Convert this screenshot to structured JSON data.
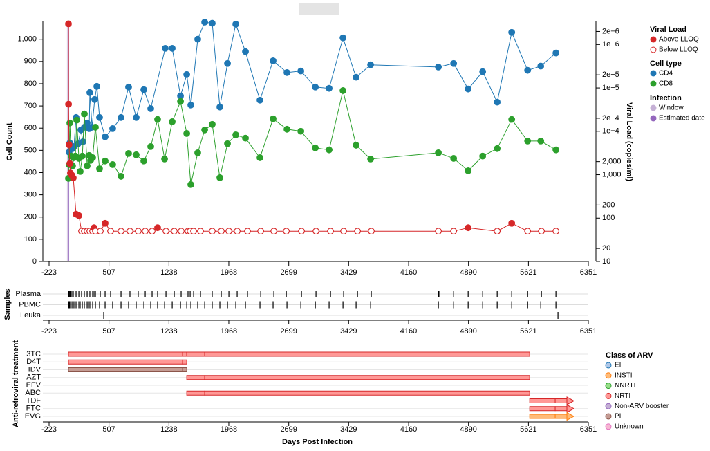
{
  "chart_data": [
    {
      "type": "line",
      "ylabel": "Cell Count",
      "y2label": "Viral Load (copies/ml)",
      "xlim": [
        -223,
        6351
      ],
      "xticks": [
        -223,
        507,
        1238,
        1968,
        2699,
        3429,
        4160,
        4890,
        5621,
        6351
      ],
      "ylim": [
        0,
        1080
      ],
      "yticks": [
        0,
        100,
        200,
        300,
        400,
        500,
        600,
        700,
        800,
        900,
        {
          "value": 1000,
          "label": "1,000"
        }
      ],
      "y2lim": [
        10,
        3400000
      ],
      "y2log": true,
      "y2ticks": [
        10,
        20,
        100,
        200,
        {
          "value": 1000,
          "label": "1,000"
        },
        {
          "value": 2000,
          "label": "2,000"
        },
        {
          "value": 10000,
          "label": "1e+4"
        },
        {
          "value": 20000,
          "label": "2e+4"
        },
        {
          "value": 100000,
          "label": "1e+5"
        },
        {
          "value": 200000,
          "label": "2e+5"
        },
        {
          "value": 1000000,
          "label": "1e+6"
        },
        {
          "value": 2000000,
          "label": "2e+6"
        }
      ],
      "cell_type_title": "Cell type",
      "series": [
        {
          "name": "CD4",
          "color": "#1f77b4",
          "x": [
            21,
            30,
            46,
            63,
            80,
            106,
            131,
            165,
            190,
            207,
            241,
            266,
            274,
            300,
            333,
            359,
            392,
            460,
            552,
            654,
            746,
            839,
            932,
            1016,
            1193,
            1278,
            1379,
            1455,
            1505,
            1589,
            1674,
            1766,
            1859,
            1952,
            2053,
            2171,
            2348,
            2508,
            2677,
            2846,
            3023,
            3191,
            3360,
            3520,
            3697,
            4523,
            4709,
            4886,
            5063,
            5240,
            5417,
            5611,
            5771,
            5956
          ],
          "values": [
            492,
            533,
            517,
            508,
            517,
            648,
            530,
            592,
            539,
            604,
            623,
            598,
            760,
            604,
            729,
            788,
            648,
            561,
            598,
            648,
            785,
            648,
            773,
            688,
            959,
            959,
            745,
            841,
            704,
            1000,
            1077,
            1072,
            695,
            891,
            1068,
            944,
            726,
            903,
            850,
            857,
            785,
            779,
            1006,
            829,
            885,
            875,
            891,
            776,
            854,
            717,
            1031,
            860,
            879,
            938
          ]
        },
        {
          "name": "CD8",
          "color": "#2ca02c",
          "x": [
            13,
            21,
            30,
            46,
            63,
            80,
            97,
            114,
            140,
            156,
            182,
            207,
            241,
            266,
            283,
            308,
            342,
            392,
            460,
            552,
            654,
            746,
            839,
            932,
            1016,
            1100,
            1185,
            1278,
            1379,
            1455,
            1505,
            1589,
            1674,
            1766,
            1859,
            1952,
            2053,
            2171,
            2348,
            2508,
            2677,
            2846,
            3023,
            3191,
            3360,
            3520,
            3697,
            4523,
            4709,
            4886,
            5063,
            5240,
            5417,
            5611,
            5771,
            5956
          ],
          "values": [
            374,
            436,
            623,
            474,
            430,
            467,
            474,
            636,
            464,
            405,
            474,
            664,
            430,
            477,
            455,
            467,
            604,
            417,
            452,
            436,
            383,
            486,
            480,
            452,
            517,
            639,
            461,
            629,
            720,
            576,
            346,
            489,
            592,
            617,
            377,
            530,
            570,
            555,
            467,
            642,
            595,
            586,
            511,
            502,
            769,
            523,
            461,
            489,
            464,
            408,
            474,
            508,
            639,
            542,
            542,
            502
          ]
        },
        {
          "name": "Viral Load",
          "color": "#d62728",
          "axis": "y2",
          "status_labels": [
            "Above LLOQ",
            "Below LLOQ"
          ],
          "x": [
            13,
            14,
            20,
            30,
            38,
            55,
            72,
            106,
            140,
            173,
            207,
            241,
            274,
            308,
            325,
            342,
            401,
            460,
            527,
            654,
            763,
            864,
            949,
            1033,
            1100,
            1202,
            1303,
            1387,
            1471,
            1497,
            1539,
            1623,
            1766,
            1876,
            1969,
            2070,
            2196,
            2357,
            2517,
            2669,
            2854,
            3031,
            3208,
            3368,
            3537,
            3705,
            4523,
            4709,
            4886,
            5240,
            5417,
            5611,
            5779,
            5956
          ],
          "values": [
            3000000,
            42000,
            4900,
            1800,
            1090,
            970,
            840,
            123,
            114,
            50,
            50,
            50,
            50,
            50,
            60,
            50,
            50,
            76,
            50,
            50,
            50,
            50,
            50,
            50,
            60,
            50,
            50,
            50,
            50,
            50,
            50,
            50,
            50,
            50,
            50,
            50,
            50,
            50,
            50,
            50,
            50,
            50,
            50,
            50,
            50,
            50,
            50,
            50,
            60,
            50,
            76,
            50,
            50,
            50
          ],
          "above_lloq": [
            true,
            true,
            true,
            true,
            true,
            true,
            true,
            true,
            true,
            false,
            false,
            false,
            false,
            false,
            true,
            false,
            false,
            true,
            false,
            false,
            false,
            false,
            false,
            false,
            true,
            false,
            false,
            false,
            false,
            false,
            false,
            false,
            false,
            false,
            false,
            false,
            false,
            false,
            false,
            false,
            false,
            false,
            false,
            false,
            false,
            false,
            false,
            false,
            true,
            false,
            true,
            false,
            false,
            false
          ]
        }
      ],
      "infection": {
        "title": "Infection",
        "window": [
          -5,
          22
        ],
        "window_label": "Window",
        "window_color": "#c5b0d5",
        "estimated_date": 13,
        "estimated_label": "Estimated date",
        "estimated_color": "#9467bd"
      }
    },
    {
      "type": "samples",
      "ylabel": "Samples",
      "xlim": [
        -223,
        6351
      ],
      "xticks": [
        -223,
        507,
        1238,
        1968,
        2699,
        3429,
        4160,
        4890,
        5621,
        6351
      ],
      "rows": [
        {
          "name": "Plasma",
          "x": [
            13,
            14,
            20,
            30,
            38,
            55,
            72,
            106,
            140,
            173,
            207,
            241,
            274,
            308,
            325,
            342,
            401,
            460,
            527,
            654,
            763,
            864,
            949,
            1033,
            1100,
            1202,
            1303,
            1387,
            1471,
            1497,
            1539,
            1623,
            1766,
            1876,
            1969,
            2070,
            2196,
            2357,
            2517,
            2669,
            2854,
            3031,
            3208,
            3368,
            3537,
            3705,
            4523,
            4530,
            4709,
            4886,
            5063,
            5240,
            5417,
            5611,
            5779,
            5956
          ]
        },
        {
          "name": "PBMC",
          "x": [
            13,
            21,
            30,
            46,
            63,
            80,
            97,
            114,
            140,
            156,
            182,
            207,
            241,
            266,
            283,
            308,
            342,
            392,
            460,
            552,
            654,
            746,
            839,
            932,
            1016,
            1100,
            1185,
            1278,
            1379,
            1455,
            1505,
            1589,
            1674,
            1766,
            1859,
            1952,
            2053,
            2171,
            2348,
            2508,
            2677,
            2846,
            3023,
            3191,
            3360,
            3520,
            3697,
            4523,
            4709,
            4886,
            5063,
            5240,
            5417,
            5611,
            5771,
            5956
          ]
        },
        {
          "name": "Leuka",
          "x": [
            443,
            5981
          ]
        }
      ]
    },
    {
      "type": "gantt",
      "ylabel": "Anti-retroviral treatment",
      "xlabel": "Days Post Infection",
      "xlim": [
        -223,
        6351
      ],
      "xticks": [
        -223,
        507,
        1238,
        1968,
        2699,
        3429,
        4160,
        4890,
        5621,
        6351
      ],
      "legend_title": "Class of ARV",
      "classes": [
        {
          "name": "EI",
          "fill": "#aec7e8",
          "stroke": "#1f77b4"
        },
        {
          "name": "INSTI",
          "fill": "#ffbb78",
          "stroke": "#ff7f0e"
        },
        {
          "name": "NNRTI",
          "fill": "#98df8a",
          "stroke": "#2ca02c"
        },
        {
          "name": "NRTI",
          "fill": "#ff9896",
          "stroke": "#d62728"
        },
        {
          "name": "Non-ARV booster",
          "fill": "#c5b0d5",
          "stroke": "#9467bd"
        },
        {
          "name": "PI",
          "fill": "#c49c94",
          "stroke": "#8c564b"
        },
        {
          "name": "Unknown",
          "fill": "#f7b6d2",
          "stroke": "#e377c2"
        }
      ],
      "rows": [
        {
          "name": "3TC",
          "class": 3,
          "ongoing": false,
          "periods": [
            [
              13,
              1404
            ],
            [
              1404,
              1455
            ],
            [
              1455,
              1674
            ],
            [
              1674,
              5636
            ]
          ]
        },
        {
          "name": "D4T",
          "class": 3,
          "ongoing": false,
          "periods": [
            [
              13,
              1404
            ],
            [
              1404,
              1455
            ]
          ]
        },
        {
          "name": "IDV",
          "class": 5,
          "ongoing": false,
          "periods": [
            [
              13,
              1404
            ],
            [
              1404,
              1455
            ]
          ]
        },
        {
          "name": "AZT",
          "class": 3,
          "ongoing": false,
          "periods": [
            [
              1455,
              1674
            ],
            [
              1674,
              5636
            ]
          ]
        },
        {
          "name": "EFV",
          "class": 2,
          "ongoing": false,
          "periods": []
        },
        {
          "name": "ABC",
          "class": 3,
          "ongoing": false,
          "periods": [
            [
              1455,
              1674
            ],
            [
              1674,
              5636
            ]
          ]
        },
        {
          "name": "TDF",
          "class": 3,
          "ongoing": true,
          "periods": [
            [
              5636,
              5947
            ],
            [
              5947,
              6090
            ]
          ]
        },
        {
          "name": "FTC",
          "class": 3,
          "ongoing": true,
          "periods": [
            [
              5636,
              5947
            ],
            [
              5947,
              6090
            ]
          ]
        },
        {
          "name": "EVG",
          "class": 1,
          "ongoing": true,
          "periods": [
            [
              5636,
              5947
            ],
            [
              5947,
              6090
            ]
          ]
        }
      ]
    }
  ]
}
